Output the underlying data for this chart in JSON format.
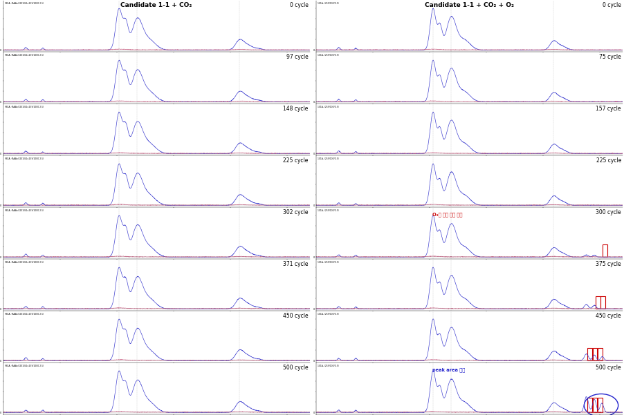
{
  "left_title": "Candidate 1-1 + CO₂",
  "right_title": "Candidate 1-1 + CO₂ + O₂",
  "left_cycles": [
    "0 cycle",
    "97 cycle",
    "148 cycle",
    "225 cycle",
    "302 cycle",
    "371 cycle",
    "450 cycle",
    "500 cycle"
  ],
  "right_cycles": [
    "0 cycle",
    "75 cycle",
    "157 cycle",
    "225 cycle",
    "300 cycle",
    "375 cycle",
    "450 cycle",
    "500 cycle"
  ],
  "fig_width": 9.02,
  "fig_height": 6.01,
  "bg_color": "#ffffff",
  "panel_bg": "#ffffff",
  "line_color_blue": "#3333cc",
  "line_color_pink": "#cc6688",
  "annotation_red": "#cc0000",
  "annotation_blue": "#2222cc",
  "box_color": "#cc0000",
  "o2_annotation": "O₂에 의한 영향 예상",
  "peak_annotation": "peak area 증가",
  "num_rows": 8,
  "num_cols": 2,
  "left_headers": [
    "FB1A, (AAA=0201/04=259/1000 2.5)",
    "FB1A, (AAA=0201/04=259/1000 2.5)",
    "FB1A, (AAA=0201/04=259/1000 2.5)",
    "FB1A, (AAA=0201/04=259/1000 2.5)",
    "FB1A, (AAA=0201/04=259/1000 2.5)",
    "FB1A, (AAA=0201/04=259/1000 2.5)",
    "FB1A, (AAA=0201/04=259/1000 2.5)",
    "FB1A, (AAA=0201/04=259/1000 2.5)"
  ],
  "right_headers": [
    "101A, (259/100/0.5)",
    "101A, (259/100/0.5)",
    "101A, (259/100/0.5)",
    "101A, (259/100/0.5)",
    "101A, (259/100/0.5)",
    "101A, (259/100/0.5)",
    "101A, (259/100/0.5)",
    "101A, (259/100/0.5)"
  ]
}
